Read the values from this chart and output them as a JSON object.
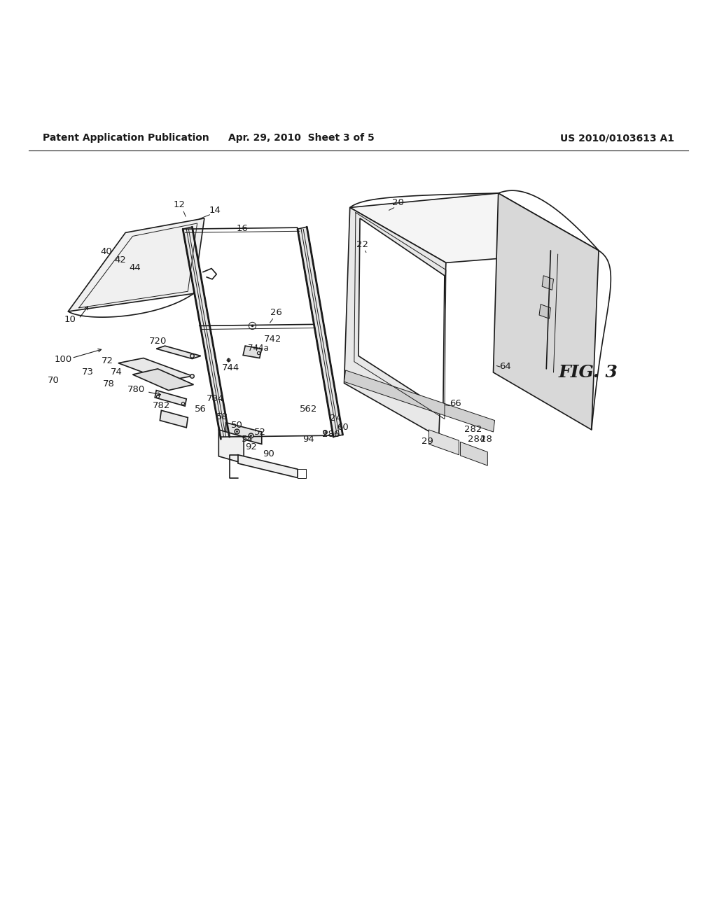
{
  "bg_color": "#ffffff",
  "line_color": "#1a1a1a",
  "header_left": "Patent Application Publication",
  "header_mid": "Apr. 29, 2010  Sheet 3 of 5",
  "header_right": "US 2010/0103613 A1",
  "fig_label": "FIG. 3",
  "header_fontsize": 10,
  "label_fontsize": 9.5,
  "fig_label_fontsize": 18
}
